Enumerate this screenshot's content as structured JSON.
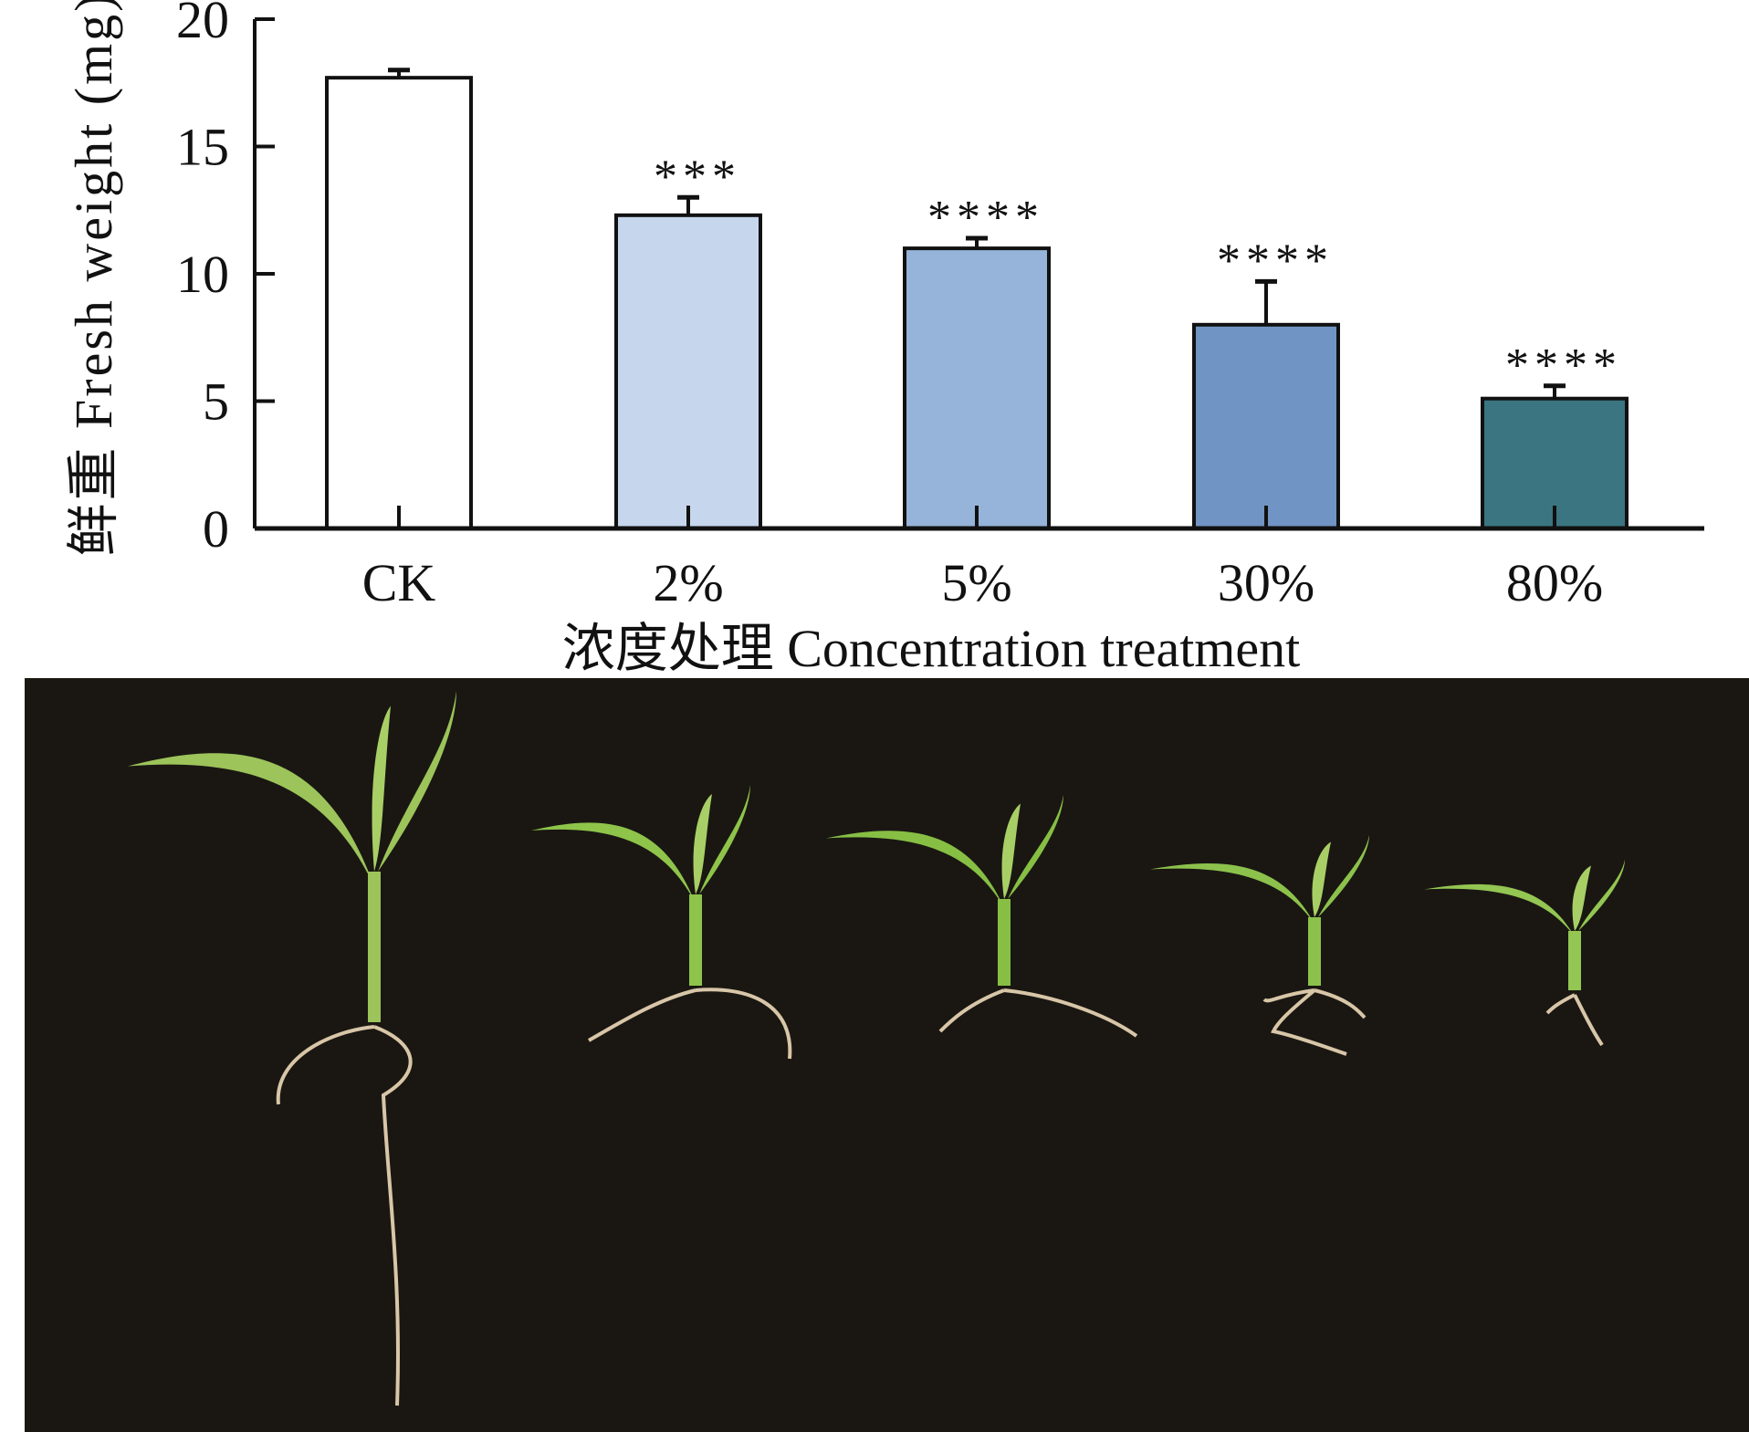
{
  "chart_data": {
    "type": "bar",
    "title": "",
    "xlabel": "浓度处理 Concentration treatment",
    "ylabel": "鲜重 Fresh weight (mg)",
    "ylim": [
      0,
      20
    ],
    "yticks": [
      "0",
      "5",
      "10",
      "15",
      "20"
    ],
    "categories": [
      "CK",
      "2%",
      "5%",
      "30%",
      "80%"
    ],
    "values": [
      17.7,
      12.3,
      11.0,
      8.0,
      5.1
    ],
    "errors": [
      0.3,
      0.7,
      0.4,
      1.7,
      0.5
    ],
    "significance": [
      "",
      "***",
      "****",
      "****",
      "****"
    ],
    "colors": [
      "#ffffff",
      "#c6d6ec",
      "#96b3d9",
      "#7094c3",
      "#3a7581"
    ],
    "grid": false,
    "legend": "none"
  },
  "photo": {
    "background": "#1a1712",
    "plants": 5
  }
}
